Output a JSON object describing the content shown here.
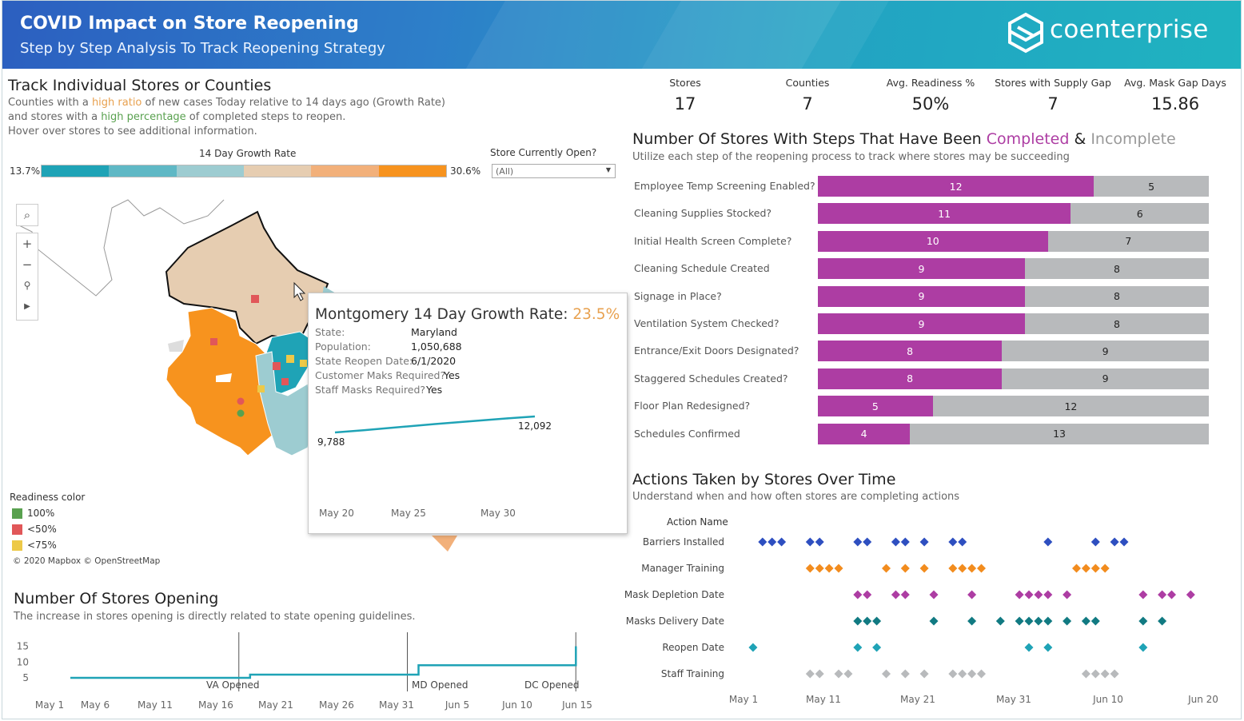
{
  "header": {
    "title": "COVID Impact on Store Reopening",
    "subtitle": "Step by Step Analysis To Track Reopening Strategy",
    "logo": "coenterprise"
  },
  "track": {
    "title": "Track Individual Stores or Counties",
    "desc_1a": "Counties with a ",
    "desc_1b": "high ratio",
    "desc_1c": " of new cases Today relative to 14 days ago (Growth Rate)",
    "desc_2a": "and stores with a ",
    "desc_2b": "high percentage",
    "desc_2c": " of completed steps to reopen.",
    "desc_3": "Hover over stores to see additional information.",
    "growth_label": "14 Day Growth Rate",
    "growth_min": "13.7%",
    "growth_max": "30.6%",
    "growth_colors": [
      "#1fa3b6",
      "#5fb8c5",
      "#9dccd1",
      "#e6cdb1",
      "#f2b07a",
      "#f7931e"
    ],
    "store_open_label": "Store Currently Open?",
    "store_open_value": "(All)"
  },
  "kpis": [
    {
      "label": "Stores",
      "value": "17"
    },
    {
      "label": "Counties",
      "value": "7"
    },
    {
      "label": "Avg. Readiness %",
      "value": "50%"
    },
    {
      "label": "Stores with Supply Gap",
      "value": "7"
    },
    {
      "label": "Avg. Mask Gap Days",
      "value": "15.86"
    }
  ],
  "steps": {
    "title_a": "Number Of Stores With Steps That Have Been ",
    "title_completed": "Completed",
    "title_amp": " & ",
    "title_incomplete": "Incomplete",
    "subtitle": "Utilize each step of the reopening process to track where stores may be succeeding",
    "rows": [
      {
        "label": "Employee Temp Screening Enabled?",
        "completed": 12,
        "incomplete": 5
      },
      {
        "label": "Cleaning Supplies Stocked?",
        "completed": 11,
        "incomplete": 6
      },
      {
        "label": "Initial Health Screen Complete?",
        "completed": 10,
        "incomplete": 7
      },
      {
        "label": "Cleaning Schedule Created",
        "completed": 9,
        "incomplete": 8
      },
      {
        "label": "Signage in Place?",
        "completed": 9,
        "incomplete": 8
      },
      {
        "label": "Ventilation System Checked?",
        "completed": 9,
        "incomplete": 8
      },
      {
        "label": "Entrance/Exit Doors Designated?",
        "completed": 8,
        "incomplete": 9
      },
      {
        "label": "Staggered Schedules Created?",
        "completed": 8,
        "incomplete": 9
      },
      {
        "label": "Floor Plan Redesigned?",
        "completed": 5,
        "incomplete": 12
      },
      {
        "label": "Schedules Confirmed",
        "completed": 4,
        "incomplete": 13
      }
    ]
  },
  "actions": {
    "title": "Actions Taken by Stores Over Time",
    "subtitle": "Understand when and how often stores are completing actions",
    "header": "Action Name",
    "x_labels": [
      "May 1",
      "May 11",
      "May 21",
      "May 31",
      "Jun 10",
      "Jun 20"
    ],
    "rows": [
      {
        "name": "Barriers Installed",
        "color": "#2e4fc0",
        "days": [
          3,
          4,
          5,
          8,
          9,
          13,
          14,
          17,
          18,
          20,
          23,
          24,
          33,
          38,
          40,
          41
        ]
      },
      {
        "name": "Manager Training",
        "color": "#f28c1e",
        "days": [
          8,
          9,
          10,
          11,
          16,
          18,
          20,
          23,
          24,
          25,
          26,
          36,
          37,
          38,
          39
        ]
      },
      {
        "name": "Mask Depletion Date",
        "color": "#ad3da3",
        "days": [
          13,
          14,
          17,
          18,
          21,
          25,
          30,
          31,
          32,
          33,
          35,
          43,
          45,
          46,
          48
        ]
      },
      {
        "name": "Masks Delivery Date",
        "color": "#117a82",
        "days": [
          13,
          14,
          15,
          21,
          25,
          28,
          30,
          31,
          32,
          33,
          35,
          37,
          38,
          43,
          45
        ]
      },
      {
        "name": "Reopen Date",
        "color": "#1fa3b6",
        "days": [
          2,
          13,
          15,
          31,
          33,
          43
        ]
      },
      {
        "name": "Staff Training",
        "color": "#b8babc",
        "days": [
          8,
          9,
          11,
          12,
          16,
          18,
          20,
          23,
          24,
          25,
          26,
          37,
          38,
          39,
          40
        ]
      }
    ]
  },
  "opening": {
    "title": "Number Of Stores Opening",
    "subtitle": "The increase in stores opening is directly related to state opening guidelines.",
    "y_ticks": [
      "15",
      "10",
      "5"
    ],
    "x_labels": [
      "May 1",
      "May 6",
      "May 11",
      "May 16",
      "May 21",
      "May 26",
      "May 31",
      "Jun 5",
      "Jun 10",
      "Jun 15"
    ],
    "annotations": [
      "VA Opened",
      "MD Opened",
      "DC Opened"
    ]
  },
  "map": {
    "legend_title": "Readiness color",
    "legend": [
      {
        "label": "100%",
        "color": "#59a14f"
      },
      {
        "label": "<50%",
        "color": "#e15759"
      },
      {
        "label": "<75%",
        "color": "#edc948"
      }
    ],
    "attribution": "© 2020 Mapbox © OpenStreetMap"
  },
  "tooltip": {
    "title": "Montgomery 14 Day Growth Rate: ",
    "rate": "23.5%",
    "fields": [
      {
        "key": "State:",
        "value": "Maryland"
      },
      {
        "key": "Population:",
        "value": "1,050,688"
      },
      {
        "key": "State Reopen Date:",
        "value": "6/1/2020"
      },
      {
        "key": "Customer Maks Required?",
        "value": "Yes"
      },
      {
        "key": "Staff Masks Required?",
        "value": "Yes"
      }
    ],
    "spark_start": "9,788",
    "spark_end": "12,092",
    "x_labels": [
      "May 20",
      "May 25",
      "May 30"
    ]
  },
  "chart_data": [
    {
      "type": "bar",
      "title": "Number Of Stores With Steps That Have Been Completed & Incomplete",
      "categories": [
        "Employee Temp Screening Enabled?",
        "Cleaning Supplies Stocked?",
        "Initial Health Screen Complete?",
        "Cleaning Schedule Created",
        "Signage in Place?",
        "Ventilation System Checked?",
        "Entrance/Exit Doors Designated?",
        "Staggered Schedules Created?",
        "Floor Plan Redesigned?",
        "Schedules Confirmed"
      ],
      "series": [
        {
          "name": "Completed",
          "values": [
            12,
            11,
            10,
            9,
            9,
            9,
            8,
            8,
            5,
            4
          ]
        },
        {
          "name": "Incomplete",
          "values": [
            5,
            6,
            7,
            8,
            8,
            8,
            9,
            9,
            12,
            13
          ]
        }
      ]
    },
    {
      "type": "line",
      "title": "Number Of Stores Opening",
      "x": [
        1,
        16,
        17,
        31,
        32,
        46
      ],
      "values": [
        5,
        5,
        6,
        6,
        9,
        10
      ],
      "end_value": 15,
      "ylim": [
        2,
        16
      ]
    },
    {
      "type": "line",
      "title": "Montgomery 14 Day Growth Rate",
      "x": [
        18,
        20,
        25,
        30,
        32
      ],
      "values": [
        9788,
        10100,
        11000,
        11800,
        12092
      ]
    }
  ]
}
